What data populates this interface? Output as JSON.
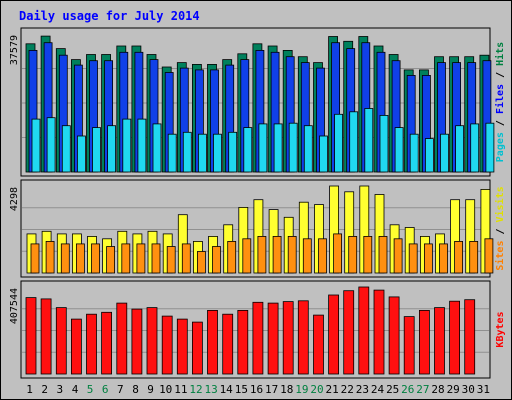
{
  "chart_data": {
    "type": "bar",
    "title": "Daily usage for July 2014",
    "categories": [
      "1",
      "2",
      "3",
      "4",
      "5",
      "6",
      "7",
      "8",
      "9",
      "10",
      "11",
      "12",
      "13",
      "14",
      "15",
      "16",
      "17",
      "18",
      "19",
      "20",
      "21",
      "22",
      "23",
      "24",
      "25",
      "26",
      "27",
      "28",
      "29",
      "30",
      "31"
    ],
    "weekend_days": [
      "5",
      "6",
      "12",
      "13",
      "19",
      "20",
      "26",
      "27"
    ],
    "panels": [
      {
        "id": "hits",
        "ylabel_parts": [
          {
            "text": "Pages",
            "color": "#00c0d0"
          },
          {
            "text": " / ",
            "color": "#000000"
          },
          {
            "text": "Files",
            "color": "#0000ff"
          },
          {
            "text": " / ",
            "color": "#000000"
          },
          {
            "text": "Hits",
            "color": "#008040"
          }
        ],
        "max_label": "37579",
        "ylim": [
          0,
          37579
        ],
        "series": [
          {
            "name": "Hits",
            "color": "#00805c",
            "values": [
              34900,
              37000,
              33600,
              30600,
              32000,
              32000,
              34300,
              34300,
              32000,
              28600,
              29800,
              29300,
              29300,
              30600,
              32200,
              34900,
              34300,
              33100,
              31400,
              29800,
              36900,
              35600,
              36900,
              34300,
              32000,
              27800,
              27800,
              31400,
              31400,
              31400,
              31800
            ]
          },
          {
            "name": "Files",
            "color": "#1040e8",
            "values": [
              33100,
              35200,
              31800,
              29100,
              30300,
              30300,
              32600,
              32600,
              30600,
              27100,
              28300,
              27800,
              27800,
              29100,
              30600,
              33100,
              32600,
              31400,
              29800,
              28300,
              35200,
              33600,
              35200,
              32600,
              30300,
              26300,
              26300,
              29800,
              29800,
              29800,
              30300
            ]
          },
          {
            "name": "Pages",
            "color": "#20d8f0",
            "values": [
              14400,
              14800,
              12600,
              9800,
              12100,
              12600,
              14400,
              14400,
              13100,
              10300,
              10800,
              10300,
              10300,
              10800,
              12100,
              13100,
              13100,
              13300,
              12600,
              9800,
              15700,
              16400,
              17300,
              15400,
              12100,
              10300,
              9100,
              10300,
              12600,
              13100,
              13300
            ]
          }
        ]
      },
      {
        "id": "visits",
        "ylabel_parts": [
          {
            "text": "Sites",
            "color": "#ff8000"
          },
          {
            "text": " / ",
            "color": "#000000"
          },
          {
            "text": "Visits",
            "color": "#e0e000"
          }
        ],
        "max_label": "4298",
        "ylim": [
          0,
          4298
        ],
        "series": [
          {
            "name": "Visits",
            "color": "#ffff30",
            "values": [
              1930,
              2060,
              1930,
              1930,
              1810,
              1690,
              2060,
              1930,
              2060,
              1930,
              2880,
              1560,
              1810,
              2380,
              3240,
              3620,
              3130,
              2750,
              3500,
              3380,
              4300,
              4010,
              4300,
              3880,
              2380,
              2250,
              1810,
              1930,
              3620,
              3620,
              4130
            ]
          },
          {
            "name": "Sites",
            "color": "#ff9010",
            "values": [
              1440,
              1560,
              1440,
              1440,
              1440,
              1310,
              1440,
              1440,
              1440,
              1310,
              1440,
              1060,
              1310,
              1560,
              1690,
              1810,
              1810,
              1810,
              1690,
              1690,
              1930,
              1810,
              1810,
              1810,
              1690,
              1440,
              1440,
              1440,
              1560,
              1560,
              1690
            ]
          }
        ]
      },
      {
        "id": "kbytes",
        "ylabel_parts": [
          {
            "text": "KBytes",
            "color": "#ff0000"
          }
        ],
        "max_label": "407544",
        "ylim": [
          0,
          407544
        ],
        "series": [
          {
            "name": "KBytes",
            "color": "#ff1010",
            "values": [
              358000,
              352000,
              311000,
              257000,
              280000,
              289000,
              332000,
              304000,
              311000,
              271000,
              257000,
              243000,
              298000,
              280000,
              298000,
              336000,
              332000,
              339000,
              343000,
              276000,
              370000,
              390000,
              407544,
              393000,
              361000,
              269000,
              298000,
              311000,
              341000,
              348000,
              0
            ]
          }
        ]
      }
    ]
  },
  "colors": {
    "frame": "#000000",
    "outer_background": "#c0c0c0",
    "plot_background": "#c0c0c0",
    "title_color": "#0000ff",
    "weekday_label": "#000000",
    "weekend_label": "#008040"
  }
}
